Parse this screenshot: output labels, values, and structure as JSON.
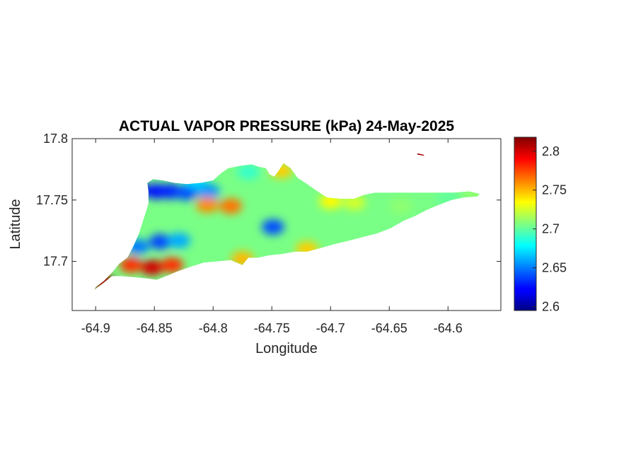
{
  "chart_data": {
    "type": "heatmap",
    "title": "ACTUAL VAPOR PRESSURE (kPa) 24-May-2025",
    "xlabel": "Longitude",
    "ylabel": "Latitude",
    "xlim": [
      -64.92,
      -64.555
    ],
    "ylim": [
      17.66,
      17.8
    ],
    "xticks": [
      -64.9,
      -64.85,
      -64.8,
      -64.75,
      -64.7,
      -64.65,
      -64.6
    ],
    "xtick_labels": [
      "-64.9",
      "-64.85",
      "-64.8",
      "-64.75",
      "-64.7",
      "-64.65",
      "-64.6"
    ],
    "yticks": [
      17.7,
      17.75,
      17.8
    ],
    "ytick_labels": [
      "17.7",
      "17.75",
      "17.8"
    ],
    "colorbar": {
      "colormap": "jet",
      "range": [
        2.595,
        2.818
      ],
      "ticks": [
        2.6,
        2.65,
        2.7,
        2.75,
        2.8
      ],
      "tick_labels": [
        "2.6",
        "2.65",
        "2.7",
        "2.75",
        "2.8"
      ]
    },
    "base_value": 2.705,
    "outline": [
      [
        -64.9,
        17.679
      ],
      [
        -64.893,
        17.684
      ],
      [
        -64.886,
        17.691
      ],
      [
        -64.88,
        17.698
      ],
      [
        -64.873,
        17.703
      ],
      [
        -64.868,
        17.712
      ],
      [
        -64.863,
        17.723
      ],
      [
        -64.859,
        17.735
      ],
      [
        -64.855,
        17.747
      ],
      [
        -64.855,
        17.757
      ],
      [
        -64.856,
        17.764
      ],
      [
        -64.851,
        17.767
      ],
      [
        -64.843,
        17.766
      ],
      [
        -64.833,
        17.764
      ],
      [
        -64.822,
        17.763
      ],
      [
        -64.81,
        17.764
      ],
      [
        -64.8,
        17.766
      ],
      [
        -64.793,
        17.772
      ],
      [
        -64.787,
        17.776
      ],
      [
        -64.776,
        17.778
      ],
      [
        -64.767,
        17.779
      ],
      [
        -64.761,
        17.777
      ],
      [
        -64.755,
        17.776
      ],
      [
        -64.752,
        17.771
      ],
      [
        -64.748,
        17.769
      ],
      [
        -64.744,
        17.774
      ],
      [
        -64.74,
        17.78
      ],
      [
        -64.734,
        17.776
      ],
      [
        -64.728,
        17.768
      ],
      [
        -64.72,
        17.763
      ],
      [
        -64.711,
        17.757
      ],
      [
        -64.703,
        17.752
      ],
      [
        -64.692,
        17.751
      ],
      [
        -64.68,
        17.751
      ],
      [
        -64.672,
        17.754
      ],
      [
        -64.662,
        17.756
      ],
      [
        -64.65,
        17.756
      ],
      [
        -64.636,
        17.756
      ],
      [
        -64.622,
        17.756
      ],
      [
        -64.608,
        17.756
      ],
      [
        -64.595,
        17.756
      ],
      [
        -64.582,
        17.757
      ],
      [
        -64.573,
        17.755
      ],
      [
        -64.575,
        17.753
      ],
      [
        -64.587,
        17.752
      ],
      [
        -64.597,
        17.75
      ],
      [
        -64.608,
        17.746
      ],
      [
        -64.618,
        17.742
      ],
      [
        -64.628,
        17.737
      ],
      [
        -64.638,
        17.733
      ],
      [
        -64.649,
        17.727
      ],
      [
        -64.66,
        17.723
      ],
      [
        -64.672,
        17.72
      ],
      [
        -64.684,
        17.717
      ],
      [
        -64.697,
        17.714
      ],
      [
        -64.708,
        17.711
      ],
      [
        -64.72,
        17.708
      ],
      [
        -64.73,
        17.708
      ],
      [
        -64.742,
        17.706
      ],
      [
        -64.752,
        17.705
      ],
      [
        -64.762,
        17.703
      ],
      [
        -64.77,
        17.703
      ],
      [
        -64.775,
        17.697
      ],
      [
        -64.785,
        17.701
      ],
      [
        -64.797,
        17.7
      ],
      [
        -64.808,
        17.699
      ],
      [
        -64.818,
        17.696
      ],
      [
        -64.83,
        17.692
      ],
      [
        -64.84,
        17.688
      ],
      [
        -64.848,
        17.685
      ],
      [
        -64.855,
        17.686
      ],
      [
        -64.866,
        17.687
      ],
      [
        -64.878,
        17.688
      ],
      [
        -64.886,
        17.688
      ],
      [
        -64.894,
        17.682
      ],
      [
        -64.901,
        17.677
      ]
    ],
    "islet": [
      [
        -64.626,
        17.788
      ],
      [
        -64.621,
        17.787
      ],
      [
        -64.62,
        17.786
      ],
      [
        -64.626,
        17.787
      ]
    ],
    "islet_value": 2.81,
    "anomalies": [
      {
        "lon": -64.864,
        "lat": 17.758,
        "value": 2.615
      },
      {
        "lon": -64.848,
        "lat": 17.757,
        "value": 2.625
      },
      {
        "lon": -64.836,
        "lat": 17.757,
        "value": 2.63
      },
      {
        "lon": -64.823,
        "lat": 17.756,
        "value": 2.64
      },
      {
        "lon": -64.804,
        "lat": 17.757,
        "value": 2.655
      },
      {
        "lon": -64.845,
        "lat": 17.716,
        "value": 2.638
      },
      {
        "lon": -64.864,
        "lat": 17.712,
        "value": 2.65
      },
      {
        "lon": -64.829,
        "lat": 17.717,
        "value": 2.66
      },
      {
        "lon": -64.749,
        "lat": 17.728,
        "value": 2.64
      },
      {
        "lon": -64.785,
        "lat": 17.745,
        "value": 2.765
      },
      {
        "lon": -64.805,
        "lat": 17.746,
        "value": 2.76
      },
      {
        "lon": -64.852,
        "lat": 17.695,
        "value": 2.8
      },
      {
        "lon": -64.835,
        "lat": 17.697,
        "value": 2.78
      },
      {
        "lon": -64.87,
        "lat": 17.697,
        "value": 2.78
      },
      {
        "lon": -64.893,
        "lat": 17.683,
        "value": 2.81
      },
      {
        "lon": -64.775,
        "lat": 17.702,
        "value": 2.75
      },
      {
        "lon": -64.72,
        "lat": 17.71,
        "value": 2.745
      },
      {
        "lon": -64.7,
        "lat": 17.749,
        "value": 2.735
      },
      {
        "lon": -64.742,
        "lat": 17.774,
        "value": 2.745
      },
      {
        "lon": -64.815,
        "lat": 17.766,
        "value": 2.67
      },
      {
        "lon": -64.77,
        "lat": 17.773,
        "value": 2.69
      },
      {
        "lon": -64.68,
        "lat": 17.748,
        "value": 2.725
      },
      {
        "lon": -64.64,
        "lat": 17.745,
        "value": 2.71
      },
      {
        "lon": -64.6,
        "lat": 17.752,
        "value": 2.7
      },
      {
        "lon": -64.578,
        "lat": 17.755,
        "value": 2.71
      }
    ]
  }
}
